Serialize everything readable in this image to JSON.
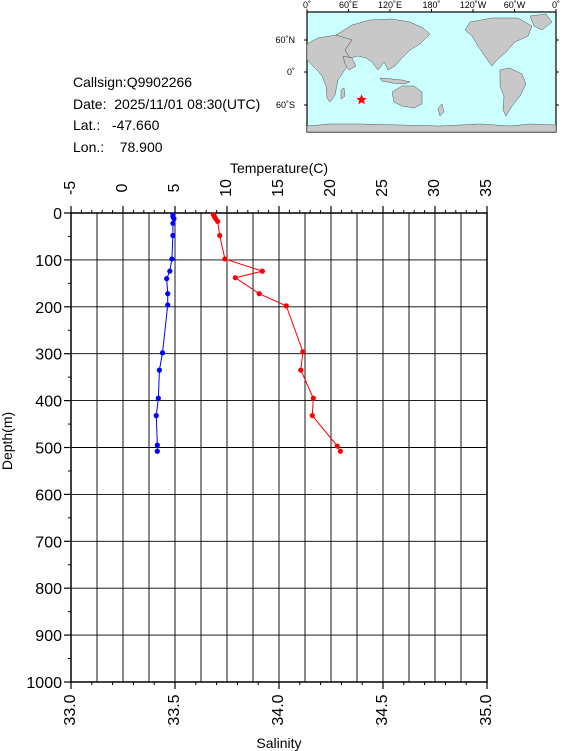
{
  "station": {
    "callsign_label": "Callsign:",
    "callsign": "Q9902266",
    "date_label": "Date:",
    "date": "2025/11/01 08:30(UTC)",
    "lat_label": "Lat.:",
    "lat": "-47.660",
    "lon_label": "Lon.:",
    "lon": "78.900"
  },
  "map": {
    "lon_ticks": [
      "0˚",
      "60˚E",
      "120˚E",
      "180˚",
      "120˚W",
      "60˚W",
      "0˚"
    ],
    "lat_ticks": [
      "60˚N",
      "0˚",
      "60˚S"
    ],
    "marker": {
      "lon": 78.9,
      "lat": -47.66,
      "color": "#ff0000",
      "icon": "star-icon"
    },
    "colors": {
      "ocean": "#ccffff",
      "land": "#c8c8c8"
    }
  },
  "chart_data": {
    "type": "line",
    "title": "",
    "top_axis": {
      "label": "Temperature(C)",
      "range": [
        -5,
        35
      ],
      "ticks": [
        "-5",
        "0",
        "5",
        "10",
        "15",
        "20",
        "25",
        "30",
        "35"
      ]
    },
    "bottom_axis": {
      "label": "Salinity",
      "range": [
        33.0,
        35.0
      ],
      "ticks": [
        "33.0",
        "33.5",
        "34.0",
        "34.5",
        "35.0"
      ]
    },
    "left_axis": {
      "label": "Depth(m)",
      "range": [
        0,
        1000
      ],
      "inverted": true,
      "ticks": [
        "0",
        "100",
        "200",
        "300",
        "400",
        "500",
        "600",
        "700",
        "800",
        "900",
        "1000"
      ]
    },
    "grid": true,
    "series": [
      {
        "quantity": "temperature",
        "axis": "top",
        "color": "#ff0000",
        "points": [
          [
            8.7,
            4
          ],
          [
            8.8,
            8
          ],
          [
            8.9,
            12
          ],
          [
            9.1,
            18
          ],
          [
            9.3,
            48
          ],
          [
            9.8,
            98
          ],
          [
            13.4,
            124
          ],
          [
            10.8,
            138
          ],
          [
            13.1,
            172
          ],
          [
            15.7,
            198
          ],
          [
            17.3,
            296
          ],
          [
            17.1,
            335
          ],
          [
            18.3,
            395
          ],
          [
            18.2,
            432
          ],
          [
            20.6,
            497
          ],
          [
            20.9,
            508
          ]
        ]
      },
      {
        "quantity": "salinity",
        "axis": "bottom",
        "color": "#0000ff",
        "points": [
          [
            33.49,
            4
          ],
          [
            33.49,
            8
          ],
          [
            33.495,
            12
          ],
          [
            33.49,
            22
          ],
          [
            33.49,
            48
          ],
          [
            33.485,
            98
          ],
          [
            33.475,
            124
          ],
          [
            33.46,
            140
          ],
          [
            33.465,
            172
          ],
          [
            33.465,
            196
          ],
          [
            33.44,
            298
          ],
          [
            33.425,
            335
          ],
          [
            33.42,
            395
          ],
          [
            33.41,
            432
          ],
          [
            33.415,
            495
          ],
          [
            33.415,
            508
          ]
        ]
      }
    ]
  }
}
